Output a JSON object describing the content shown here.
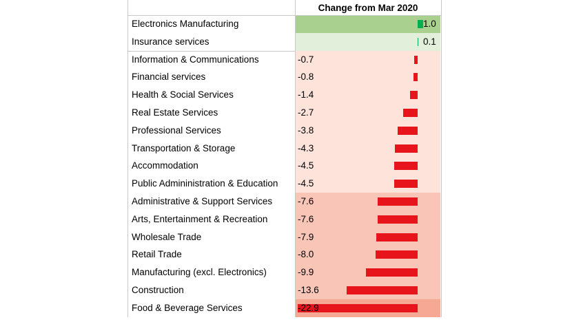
{
  "colors": {
    "positive_bar": "#00b050",
    "negative_bar": "#e8141b",
    "positive_fill": "#a9d08e",
    "positive_fill_light": "#e2efda",
    "negative_fill_light": "#fde3da",
    "negative_fill_mid": "#f9c5b6",
    "negative_fill_strong": "#f6a895"
  },
  "chart_data": {
    "type": "table",
    "title": "",
    "column_header": "Change from Mar 2020",
    "categories": [
      "Electronics Manufacturing",
      "Insurance services",
      "Information & Communications",
      "Financial services",
      "Health & Social Services",
      "Real Estate Services",
      "Professional Services",
      "Transportation & Storage",
      "Accommodation",
      "Public Admininistration & Education",
      "Administrative & Support Services",
      "Arts, Entertainment & Recreation",
      "Wholesale Trade",
      "Retail Trade",
      "Manufacturing (excl. Electronics)",
      "Construction",
      "Food & Beverage Services"
    ],
    "values": [
      1.0,
      0.1,
      -0.7,
      -0.8,
      -1.4,
      -2.7,
      -3.8,
      -4.3,
      -4.5,
      -4.5,
      -7.6,
      -7.6,
      -7.9,
      -8.0,
      -9.9,
      -13.6,
      -22.9
    ],
    "value_labels": [
      "1.0",
      "0.1",
      "-0.7",
      "-0.8",
      "-1.4",
      "-2.7",
      "-3.8",
      "-4.3",
      "-4.5",
      "-4.5",
      "-7.6",
      "-7.6",
      "-7.9",
      "-8.0",
      "-9.9",
      "-13.6",
      "-22.9"
    ],
    "xlim": [
      -22.9,
      1.0
    ],
    "grid": false,
    "legend": "none"
  }
}
